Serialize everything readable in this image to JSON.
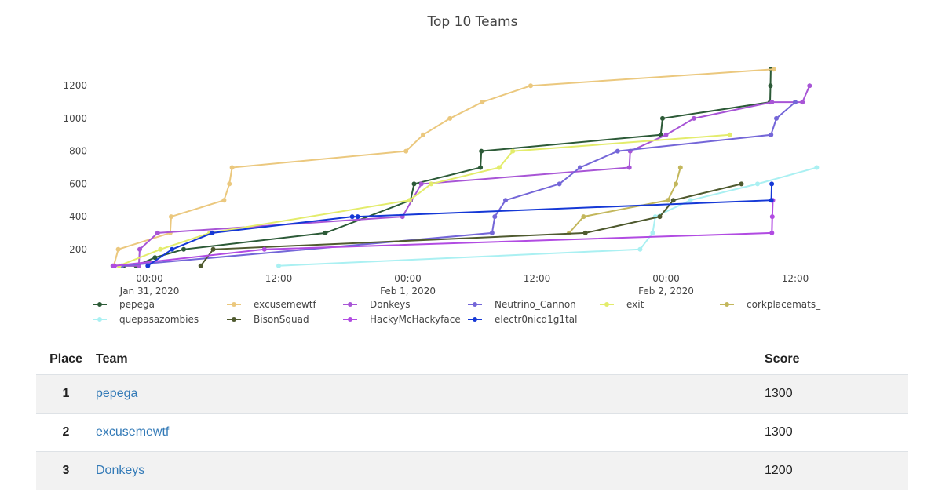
{
  "chart_data": {
    "type": "line",
    "title": "Top 10 Teams",
    "xlabel": "",
    "ylabel": "",
    "x_range": [
      "2020-01-30T19:35",
      "2020-02-02T14:20"
    ],
    "x_ticks": [
      "2020-01-31T00:00",
      "2020-01-31T12:00",
      "2020-02-01T00:00",
      "2020-02-01T12:00",
      "2020-02-02T00:00",
      "2020-02-02T12:00"
    ],
    "x_tick_labels": [
      [
        "00:00",
        "Jan 31, 2020"
      ],
      [
        "12:00",
        ""
      ],
      [
        "00:00",
        "Feb 1, 2020"
      ],
      [
        "12:00",
        ""
      ],
      [
        "00:00",
        "Feb 2, 2020"
      ],
      [
        "12:00",
        ""
      ]
    ],
    "ylim": [
      60,
      1340
    ],
    "y_ticks": [
      200,
      400,
      600,
      800,
      1000,
      1200
    ],
    "legend_position": "bottom",
    "series": [
      {
        "name": "pepega",
        "color": "#2c5a37",
        "points": [
          [
            "2020-01-30T21:35",
            100
          ],
          [
            "2020-01-30T22:45",
            100
          ],
          [
            "2020-01-31T00:30",
            150
          ],
          [
            "2020-01-31T03:10",
            200
          ],
          [
            "2020-01-31T16:20",
            300
          ],
          [
            "2020-02-01T00:15",
            500
          ],
          [
            "2020-02-01T00:35",
            600
          ],
          [
            "2020-02-01T06:45",
            700
          ],
          [
            "2020-02-01T06:50",
            800
          ],
          [
            "2020-02-01T23:30",
            900
          ],
          [
            "2020-02-01T23:40",
            1000
          ],
          [
            "2020-02-02T09:40",
            1100
          ],
          [
            "2020-02-02T09:42",
            1200
          ],
          [
            "2020-02-02T09:44",
            1300
          ]
        ]
      },
      {
        "name": "excusemewtf",
        "color": "#ebc87e",
        "points": [
          [
            "2020-01-30T20:40",
            100
          ],
          [
            "2020-01-30T21:05",
            200
          ],
          [
            "2020-01-31T01:55",
            300
          ],
          [
            "2020-01-31T02:00",
            400
          ],
          [
            "2020-01-31T06:55",
            500
          ],
          [
            "2020-01-31T07:25",
            600
          ],
          [
            "2020-01-31T07:40",
            700
          ],
          [
            "2020-01-31T23:50",
            800
          ],
          [
            "2020-02-01T01:25",
            900
          ],
          [
            "2020-02-01T03:55",
            1000
          ],
          [
            "2020-02-01T06:55",
            1100
          ],
          [
            "2020-02-01T11:25",
            1200
          ],
          [
            "2020-02-02T10:00",
            1300
          ]
        ]
      },
      {
        "name": "Donkeys",
        "color": "#a855d6",
        "points": [
          [
            "2020-01-30T20:35",
            100
          ],
          [
            "2020-01-30T23:00",
            100
          ],
          [
            "2020-01-30T23:05",
            200
          ],
          [
            "2020-01-31T00:45",
            300
          ],
          [
            "2020-01-31T23:30",
            400
          ],
          [
            "2020-02-01T01:15",
            600
          ],
          [
            "2020-02-01T20:35",
            700
          ],
          [
            "2020-02-01T20:40",
            800
          ],
          [
            "2020-02-02T00:00",
            900
          ],
          [
            "2020-02-02T02:35",
            1000
          ],
          [
            "2020-02-02T09:50",
            1100
          ],
          [
            "2020-02-02T12:40",
            1100
          ],
          [
            "2020-02-02T13:20",
            1200
          ]
        ]
      },
      {
        "name": "Neutrino_Cannon",
        "color": "#7466d8",
        "points": [
          [
            "2020-01-30T21:25",
            100
          ],
          [
            "2020-02-01T07:50",
            300
          ],
          [
            "2020-02-01T08:05",
            400
          ],
          [
            "2020-02-01T09:05",
            500
          ],
          [
            "2020-02-01T14:05",
            600
          ],
          [
            "2020-02-01T16:00",
            700
          ],
          [
            "2020-02-01T19:30",
            800
          ],
          [
            "2020-02-02T09:45",
            900
          ],
          [
            "2020-02-02T10:15",
            1000
          ],
          [
            "2020-02-02T12:00",
            1100
          ]
        ]
      },
      {
        "name": "exit",
        "color": "#e3ec6b",
        "points": [
          [
            "2020-01-30T21:10",
            100
          ],
          [
            "2020-01-31T01:00",
            200
          ],
          [
            "2020-01-31T05:35",
            300
          ],
          [
            "2020-02-01T00:10",
            500
          ],
          [
            "2020-02-01T02:10",
            600
          ],
          [
            "2020-02-01T08:30",
            700
          ],
          [
            "2020-02-01T09:45",
            800
          ],
          [
            "2020-02-02T05:55",
            900
          ]
        ]
      },
      {
        "name": "corkplacemats_",
        "color": "#c3b75c",
        "points": [
          [
            "2020-02-01T15:00",
            300
          ],
          [
            "2020-02-01T16:20",
            400
          ],
          [
            "2020-02-02T00:10",
            500
          ],
          [
            "2020-02-02T00:55",
            600
          ],
          [
            "2020-02-02T01:20",
            700
          ]
        ]
      },
      {
        "name": "quepasazombies",
        "color": "#aaf0f2",
        "points": [
          [
            "2020-01-31T12:00",
            100
          ],
          [
            "2020-02-01T21:35",
            200
          ],
          [
            "2020-02-01T22:45",
            300
          ],
          [
            "2020-02-01T23:00",
            400
          ],
          [
            "2020-02-02T02:15",
            500
          ],
          [
            "2020-02-02T08:30",
            600
          ],
          [
            "2020-02-02T14:00",
            700
          ]
        ]
      },
      {
        "name": "BisonSquad",
        "color": "#4f5a2f",
        "points": [
          [
            "2020-01-31T04:45",
            100
          ],
          [
            "2020-01-31T05:55",
            200
          ],
          [
            "2020-02-01T16:30",
            300
          ],
          [
            "2020-02-01T23:25",
            400
          ],
          [
            "2020-02-02T00:40",
            500
          ],
          [
            "2020-02-02T07:00",
            600
          ]
        ]
      },
      {
        "name": "HackyMcHackyface",
        "color": "#b14be2",
        "points": [
          [
            "2020-01-30T20:45",
            100
          ],
          [
            "2020-01-31T10:40",
            200
          ],
          [
            "2020-02-02T09:50",
            300
          ],
          [
            "2020-02-02T09:52",
            400
          ],
          [
            "2020-02-02T09:55",
            500
          ]
        ]
      },
      {
        "name": "electr0nicd1g1tal",
        "color": "#1538d6",
        "points": [
          [
            "2020-01-30T23:50",
            100
          ],
          [
            "2020-01-31T02:05",
            200
          ],
          [
            "2020-01-31T05:50",
            300
          ],
          [
            "2020-01-31T18:50",
            400
          ],
          [
            "2020-01-31T19:20",
            400
          ],
          [
            "2020-02-02T09:47",
            500
          ],
          [
            "2020-02-02T09:49",
            600
          ]
        ]
      }
    ]
  },
  "scoreboard": {
    "headers": {
      "place": "Place",
      "team": "Team",
      "score": "Score"
    },
    "rows": [
      {
        "place": "1",
        "team": "pepega",
        "score": "1300"
      },
      {
        "place": "2",
        "team": "excusemewtf",
        "score": "1300"
      },
      {
        "place": "3",
        "team": "Donkeys",
        "score": "1200"
      }
    ]
  }
}
